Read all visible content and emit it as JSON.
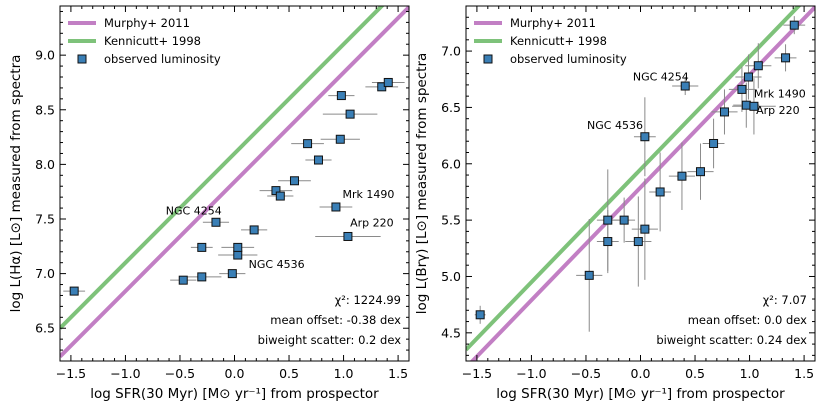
{
  "chart_data": [
    {
      "type": "scatter",
      "xlabel": "log SFR(30 Myr) [M⊙ yr⁻¹] from prospector",
      "ylabel": "log L(Hα) [L⊙] measured from spectra",
      "xlim": [
        -1.6,
        1.6
      ],
      "ylim": [
        6.2,
        9.45
      ],
      "xticks": [
        -1.5,
        -1.0,
        -0.5,
        0.0,
        0.5,
        1.0,
        1.5
      ],
      "xtick_labels": [
        "−1.5",
        "−1.0",
        "−0.5",
        "0.0",
        "0.5",
        "1.0",
        "1.5"
      ],
      "yticks": [
        6.5,
        7.0,
        7.5,
        8.0,
        8.5,
        9.0
      ],
      "ytick_labels": [
        "6.5",
        "7.0",
        "7.5",
        "8.0",
        "8.5",
        "9.0"
      ],
      "legend_position": "top-left",
      "lines": [
        {
          "name": "Murphy+ 2011",
          "color": "#c27fc4",
          "intercept": 7.84
        },
        {
          "name": "Kennicutt+ 1998",
          "color": "#7ec27a",
          "intercept": 8.1
        }
      ],
      "series": [
        {
          "name": "observed luminosity",
          "marker_color": "#3a7fb6",
          "points": [
            {
              "x": -1.47,
              "y": 6.84,
              "xerr": 0.1,
              "yerr": 0.03
            },
            {
              "x": -0.47,
              "y": 6.94,
              "xerr": 0.12,
              "yerr": 0.03
            },
            {
              "x": -0.3,
              "y": 6.97,
              "xerr": 0.18,
              "yerr": 0.03
            },
            {
              "x": -0.02,
              "y": 7.0,
              "xerr": 0.12,
              "yerr": 0.03
            },
            {
              "x": 0.03,
              "y": 7.17,
              "xerr": 0.18,
              "yerr": 0.03
            },
            {
              "x": -0.3,
              "y": 7.24,
              "xerr": 0.1,
              "yerr": 0.03
            },
            {
              "x": 0.03,
              "y": 7.24,
              "xerr": 0.15,
              "yerr": 0.03
            },
            {
              "x": 0.18,
              "y": 7.4,
              "xerr": 0.12,
              "yerr": 0.03
            },
            {
              "x": -0.17,
              "y": 7.47,
              "xerr": 0.12,
              "yerr": 0.03
            },
            {
              "x": 0.38,
              "y": 7.76,
              "xerr": 0.15,
              "yerr": 0.03
            },
            {
              "x": 0.42,
              "y": 7.71,
              "xerr": 0.12,
              "yerr": 0.03
            },
            {
              "x": 0.55,
              "y": 7.85,
              "xerr": 0.15,
              "yerr": 0.03
            },
            {
              "x": 0.77,
              "y": 8.04,
              "xerr": 0.12,
              "yerr": 0.03
            },
            {
              "x": 0.67,
              "y": 8.19,
              "xerr": 0.15,
              "yerr": 0.03
            },
            {
              "x": 0.97,
              "y": 8.23,
              "xerr": 0.18,
              "yerr": 0.03
            },
            {
              "x": 0.93,
              "y": 7.61,
              "xerr": 0.15,
              "yerr": 0.03
            },
            {
              "x": 1.04,
              "y": 7.34,
              "xerr": 0.3,
              "yerr": 0.03
            },
            {
              "x": 1.06,
              "y": 8.46,
              "xerr": 0.25,
              "yerr": 0.03
            },
            {
              "x": 0.98,
              "y": 8.63,
              "xerr": 0.12,
              "yerr": 0.03
            },
            {
              "x": 1.35,
              "y": 8.71,
              "xerr": 0.15,
              "yerr": 0.03
            },
            {
              "x": 1.41,
              "y": 8.75,
              "xerr": 0.15,
              "yerr": 0.03
            }
          ]
        }
      ],
      "annotations": [
        {
          "text": "NGC 4254",
          "x": -0.63,
          "y": 7.54
        },
        {
          "text": "NGC 4536",
          "x": 0.13,
          "y": 7.05
        },
        {
          "text": "Mrk 1490",
          "x": 0.99,
          "y": 7.69
        },
        {
          "text": "Arp 220",
          "x": 1.06,
          "y": 7.43
        }
      ],
      "stats": {
        "chi2": "χ²: 1224.99",
        "mean_offset": "mean offset: -0.38 dex",
        "scatter": "biweight scatter: 0.2 dex"
      }
    },
    {
      "type": "scatter",
      "xlabel": "log SFR(30 Myr) [M⊙ yr⁻¹] from prospector",
      "ylabel": "log L(Brγ) [L⊙] measured from spectra",
      "xlim": [
        -1.6,
        1.6
      ],
      "ylim": [
        4.25,
        7.4
      ],
      "xticks": [
        -1.5,
        -1.0,
        -0.5,
        0.0,
        0.5,
        1.0,
        1.5
      ],
      "xtick_labels": [
        "−1.5",
        "−1.0",
        "−0.5",
        "0.0",
        "0.5",
        "1.0",
        "1.5"
      ],
      "yticks": [
        4.5,
        5.0,
        5.5,
        6.0,
        6.5,
        7.0
      ],
      "ytick_labels": [
        "4.5",
        "5.0",
        "5.5",
        "6.0",
        "6.5",
        "7.0"
      ],
      "legend_position": "top-left",
      "lines": [
        {
          "name": "Murphy+ 2011",
          "color": "#c27fc4",
          "intercept": 5.79
        },
        {
          "name": "Kennicutt+ 1998",
          "color": "#7ec27a",
          "intercept": 5.95
        }
      ],
      "series": [
        {
          "name": "observed luminosity",
          "marker_color": "#3a7fb6",
          "points": [
            {
              "x": -1.47,
              "y": 4.66,
              "xerr": 0.05,
              "yerr": 0.08
            },
            {
              "x": -0.47,
              "y": 5.01,
              "xerr": 0.12,
              "yerr": 0.5
            },
            {
              "x": -0.3,
              "y": 5.31,
              "xerr": 0.1,
              "yerr": 0.28
            },
            {
              "x": -0.3,
              "y": 5.5,
              "xerr": 0.1,
              "yerr": 0.45
            },
            {
              "x": -0.15,
              "y": 5.5,
              "xerr": 0.1,
              "yerr": 0.2
            },
            {
              "x": -0.02,
              "y": 5.31,
              "xerr": 0.12,
              "yerr": 0.4
            },
            {
              "x": 0.04,
              "y": 5.42,
              "xerr": 0.12,
              "yerr": 0.45
            },
            {
              "x": 0.18,
              "y": 5.75,
              "xerr": 0.1,
              "yerr": 0.35
            },
            {
              "x": 0.38,
              "y": 5.89,
              "xerr": 0.12,
              "yerr": 0.3
            },
            {
              "x": 0.55,
              "y": 5.93,
              "xerr": 0.12,
              "yerr": 0.25
            },
            {
              "x": 0.67,
              "y": 6.18,
              "xerr": 0.1,
              "yerr": 0.22
            },
            {
              "x": 0.77,
              "y": 6.46,
              "xerr": 0.12,
              "yerr": 0.2
            },
            {
              "x": 0.04,
              "y": 6.24,
              "xerr": 0.1,
              "yerr": 0.35
            },
            {
              "x": 0.41,
              "y": 6.69,
              "xerr": 0.12,
              "yerr": 0.08
            },
            {
              "x": 0.93,
              "y": 6.66,
              "xerr": 0.12,
              "yerr": 0.2
            },
            {
              "x": 0.97,
              "y": 6.52,
              "xerr": 0.12,
              "yerr": 0.2
            },
            {
              "x": 1.04,
              "y": 6.51,
              "xerr": 0.2,
              "yerr": 0.25
            },
            {
              "x": 0.99,
              "y": 6.77,
              "xerr": 0.12,
              "yerr": 0.2
            },
            {
              "x": 1.08,
              "y": 6.87,
              "xerr": 0.12,
              "yerr": 0.2
            },
            {
              "x": 1.33,
              "y": 6.94,
              "xerr": 0.1,
              "yerr": 0.12
            },
            {
              "x": 1.41,
              "y": 7.23,
              "xerr": 0.1,
              "yerr": 0.08
            }
          ]
        }
      ],
      "annotations": [
        {
          "text": "NGC 4254",
          "x": -0.07,
          "y": 6.74
        },
        {
          "text": "NGC 4536",
          "x": -0.49,
          "y": 6.31
        },
        {
          "text": "Mrk 1490",
          "x": 1.04,
          "y": 6.59
        },
        {
          "text": "Arp 220",
          "x": 1.06,
          "y": 6.44
        }
      ],
      "stats": {
        "chi2": "χ²: 7.07",
        "mean_offset": "mean offset: 0.0 dex",
        "scatter": "biweight scatter: 0.24 dex"
      }
    }
  ]
}
